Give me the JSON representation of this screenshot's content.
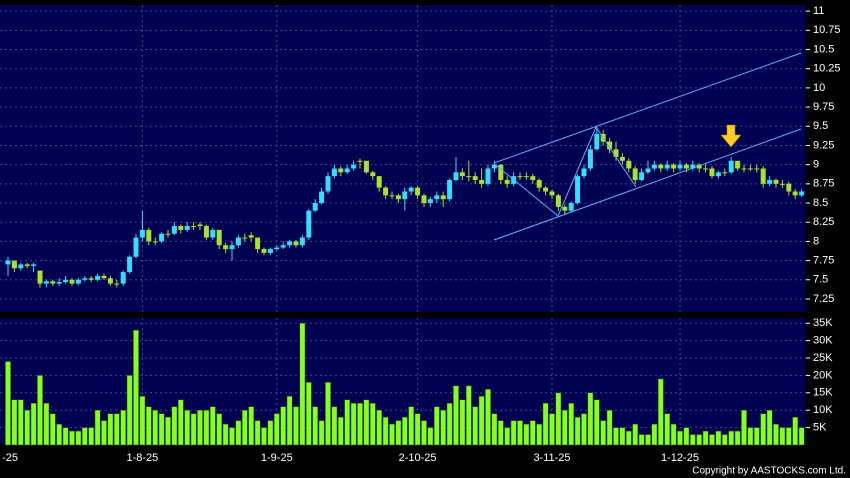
{
  "chart_data": [
    {
      "type": "candlestick",
      "categories": [
        "-25",
        null,
        null,
        null,
        null,
        null,
        null,
        null,
        null,
        null,
        null,
        null,
        null,
        null,
        null,
        null,
        null,
        null,
        null,
        null,
        null,
        "1-8-25",
        null,
        null,
        null,
        null,
        null,
        null,
        null,
        null,
        null,
        null,
        null,
        null,
        null,
        null,
        null,
        null,
        null,
        null,
        null,
        null,
        "1-9-25",
        null,
        null,
        null,
        null,
        null,
        null,
        null,
        null,
        null,
        null,
        null,
        null,
        null,
        null,
        null,
        null,
        null,
        null,
        null,
        null,
        null,
        "2-10-25",
        null,
        null,
        null,
        null,
        null,
        null,
        null,
        null,
        null,
        null,
        null,
        null,
        null,
        null,
        null,
        null,
        null,
        null,
        null,
        null,
        "3-11-25",
        null,
        null,
        null,
        null,
        null,
        null,
        null,
        null,
        null,
        null,
        null,
        null,
        null,
        null,
        null,
        null,
        null,
        null,
        null,
        "1-12-25",
        null,
        null,
        null,
        null,
        null,
        null,
        null,
        null,
        null,
        null,
        null,
        null,
        null,
        null,
        null,
        null,
        null,
        null,
        null
      ],
      "open": [
        7.7,
        7.75,
        7.65,
        7.7,
        7.68,
        7.62,
        7.45,
        7.48,
        7.45,
        7.47,
        7.5,
        7.45,
        7.5,
        7.52,
        7.5,
        7.55,
        7.52,
        7.45,
        7.45,
        7.6,
        7.8,
        8.05,
        8.15,
        8.0,
        8.0,
        8.1,
        8.1,
        8.2,
        8.15,
        8.2,
        8.22,
        8.2,
        8.05,
        8.15,
        7.95,
        7.9,
        7.95,
        8.05,
        8.08,
        8.05,
        7.9,
        7.85,
        7.9,
        7.92,
        7.95,
        8.0,
        7.95,
        8.05,
        8.4,
        8.5,
        8.65,
        8.85,
        8.95,
        8.9,
        8.95,
        9.05,
        9.05,
        8.9,
        8.85,
        8.7,
        8.6,
        8.6,
        8.55,
        8.65,
        8.7,
        8.6,
        8.5,
        8.55,
        8.6,
        8.55,
        8.8,
        8.9,
        8.85,
        8.85,
        8.8,
        8.75,
        8.95,
        9.0,
        8.8,
        8.75,
        8.85,
        8.85,
        8.85,
        8.8,
        8.7,
        8.65,
        8.6,
        8.45,
        8.4,
        8.5,
        8.85,
        8.95,
        9.2,
        9.4,
        9.3,
        9.2,
        9.1,
        9.05,
        8.95,
        8.8,
        8.9,
        8.95,
        9.0,
        8.95,
        9.0,
        8.95,
        9.0,
        8.95,
        9.0,
        8.95,
        8.95,
        8.85,
        8.9,
        8.9,
        9.05,
        8.95,
        8.95,
        8.95,
        8.95,
        8.75,
        8.8,
        8.75,
        8.75,
        8.65,
        8.6
      ],
      "high": [
        7.8,
        7.75,
        7.72,
        7.72,
        7.72,
        7.62,
        7.5,
        7.5,
        7.52,
        7.55,
        7.52,
        7.52,
        7.55,
        7.55,
        7.58,
        7.58,
        7.55,
        7.5,
        7.62,
        7.82,
        8.1,
        8.4,
        8.18,
        8.05,
        8.12,
        8.15,
        8.25,
        8.22,
        8.25,
        8.25,
        8.25,
        8.22,
        8.18,
        8.15,
        7.98,
        8.0,
        8.08,
        8.1,
        8.12,
        8.05,
        7.92,
        7.92,
        7.95,
        8.0,
        8.02,
        8.02,
        8.08,
        8.42,
        8.55,
        8.7,
        8.9,
        9.0,
        8.98,
        9.0,
        9.05,
        9.08,
        9.05,
        8.92,
        8.85,
        8.72,
        8.65,
        8.62,
        8.7,
        8.72,
        8.72,
        8.62,
        8.58,
        8.65,
        8.65,
        8.82,
        9.1,
        8.95,
        9.05,
        8.9,
        8.95,
        9.0,
        9.05,
        9.0,
        8.85,
        8.9,
        8.9,
        8.9,
        8.88,
        8.82,
        8.72,
        8.68,
        8.62,
        8.48,
        8.52,
        8.88,
        9.0,
        9.25,
        9.5,
        9.45,
        9.35,
        9.3,
        9.15,
        9.08,
        8.98,
        8.95,
        9.05,
        9.05,
        9.02,
        9.05,
        9.02,
        9.05,
        9.02,
        9.05,
        9.02,
        9.0,
        8.98,
        8.92,
        8.95,
        9.1,
        9.05,
        9.0,
        9.0,
        9.0,
        8.98,
        8.85,
        8.82,
        8.8,
        8.78,
        8.68,
        8.68
      ],
      "low": [
        7.55,
        7.6,
        7.62,
        7.65,
        7.6,
        7.4,
        7.4,
        7.42,
        7.42,
        7.45,
        7.42,
        7.43,
        7.48,
        7.47,
        7.48,
        7.5,
        7.42,
        7.4,
        7.42,
        7.58,
        7.78,
        8.0,
        7.95,
        7.95,
        7.98,
        8.05,
        8.08,
        8.1,
        8.12,
        8.15,
        8.15,
        8.02,
        8.02,
        7.9,
        7.85,
        7.75,
        7.92,
        8.0,
        8.0,
        7.85,
        7.82,
        7.82,
        7.88,
        7.9,
        7.92,
        7.92,
        7.92,
        8.02,
        8.38,
        8.48,
        8.62,
        8.82,
        8.85,
        8.88,
        8.92,
        8.95,
        8.88,
        8.8,
        8.65,
        8.55,
        8.55,
        8.5,
        8.4,
        8.6,
        8.55,
        8.45,
        8.45,
        8.5,
        8.45,
        8.52,
        8.78,
        8.8,
        8.78,
        8.75,
        8.7,
        8.72,
        8.9,
        8.75,
        8.7,
        8.72,
        8.8,
        8.8,
        8.75,
        8.65,
        8.6,
        8.55,
        8.4,
        8.35,
        8.38,
        8.48,
        8.82,
        8.92,
        9.18,
        9.25,
        9.15,
        9.05,
        9.0,
        8.9,
        8.75,
        8.78,
        8.88,
        8.92,
        8.9,
        8.92,
        8.9,
        8.92,
        8.9,
        8.92,
        8.9,
        8.9,
        8.82,
        8.82,
        8.85,
        8.88,
        8.92,
        8.9,
        8.92,
        8.9,
        8.7,
        8.72,
        8.7,
        8.7,
        8.6,
        8.55,
        8.58
      ],
      "close": [
        7.75,
        7.65,
        7.7,
        7.68,
        7.7,
        7.45,
        7.48,
        7.45,
        7.47,
        7.5,
        7.45,
        7.5,
        7.52,
        7.5,
        7.55,
        7.52,
        7.45,
        7.45,
        7.6,
        7.8,
        8.05,
        8.15,
        8.0,
        8.0,
        8.1,
        8.1,
        8.2,
        8.15,
        8.2,
        8.2,
        8.2,
        8.05,
        8.15,
        7.95,
        7.9,
        7.95,
        8.05,
        8.05,
        8.05,
        7.9,
        7.85,
        7.9,
        7.92,
        7.95,
        8.0,
        7.95,
        8.05,
        8.4,
        8.5,
        8.65,
        8.85,
        8.95,
        8.9,
        8.95,
        9.0,
        9.05,
        8.9,
        8.85,
        8.7,
        8.6,
        8.6,
        8.55,
        8.65,
        8.7,
        8.6,
        8.5,
        8.55,
        8.6,
        8.55,
        8.8,
        8.9,
        8.85,
        8.85,
        8.8,
        8.75,
        8.95,
        9.0,
        8.8,
        8.75,
        8.85,
        8.85,
        8.85,
        8.8,
        8.7,
        8.65,
        8.6,
        8.45,
        8.4,
        8.5,
        8.85,
        8.95,
        9.2,
        9.4,
        9.3,
        9.2,
        9.1,
        9.05,
        8.95,
        8.8,
        8.9,
        8.95,
        9.0,
        8.95,
        9.0,
        8.95,
        9.0,
        8.95,
        9.0,
        8.95,
        8.95,
        8.85,
        8.9,
        8.9,
        9.05,
        8.95,
        8.95,
        8.95,
        8.95,
        8.75,
        8.8,
        8.75,
        8.75,
        8.65,
        8.6,
        8.65
      ],
      "up_color": "#33ddff",
      "down_color": "#a6e22e",
      "ylim": [
        7.08,
        11.08
      ],
      "yticks": [
        7.25,
        7.5,
        7.75,
        8,
        8.25,
        8.5,
        8.75,
        9,
        9.25,
        9.5,
        9.75,
        10,
        10.25,
        10.5,
        10.75,
        11
      ],
      "grid": true
    },
    {
      "type": "bar",
      "color": "#88ff22",
      "values": [
        24000,
        13000,
        13000,
        10000,
        12000,
        20000,
        12000,
        9000,
        6000,
        5000,
        4000,
        4000,
        5000,
        5000,
        10000,
        7000,
        9000,
        9000,
        10000,
        20000,
        33000,
        14000,
        11000,
        10000,
        9000,
        8000,
        11000,
        13000,
        10000,
        9000,
        10000,
        10000,
        11000,
        9000,
        6000,
        5000,
        7000,
        10000,
        11000,
        7000,
        5000,
        7000,
        9000,
        11000,
        14000,
        11000,
        35000,
        18000,
        11000,
        7000,
        18000,
        11000,
        8000,
        13000,
        12000,
        12000,
        13000,
        12000,
        10000,
        8000,
        6000,
        7000,
        8000,
        11000,
        9000,
        7000,
        5000,
        11000,
        10000,
        12000,
        17000,
        13000,
        17000,
        11000,
        14000,
        16000,
        9000,
        7000,
        5000,
        7000,
        7000,
        6000,
        7000,
        6000,
        12000,
        9000,
        15000,
        10000,
        12000,
        8000,
        9000,
        15000,
        13000,
        7000,
        10000,
        5000,
        5000,
        4000,
        6000,
        3000,
        3000,
        6000,
        19000,
        9000,
        6000,
        4000,
        5000,
        3000,
        3000,
        4000,
        3000,
        4000,
        3000,
        4000,
        4000,
        10000,
        5000,
        5000,
        9000,
        10000,
        6000,
        5000,
        5000,
        8000,
        5000
      ],
      "ylim": [
        0,
        36500
      ],
      "yticks": [
        {
          "value": 5000,
          "label": "5K"
        },
        {
          "value": 10000,
          "label": "10K"
        },
        {
          "value": 15000,
          "label": "15K"
        },
        {
          "value": 20000,
          "label": "20K"
        },
        {
          "value": 25000,
          "label": "25K"
        },
        {
          "value": 30000,
          "label": "30K"
        },
        {
          "value": 35000,
          "label": "35K"
        }
      ],
      "grid": true
    }
  ],
  "footer": {
    "copyright": "Copyright by AASTOCKS.com Ltd."
  }
}
